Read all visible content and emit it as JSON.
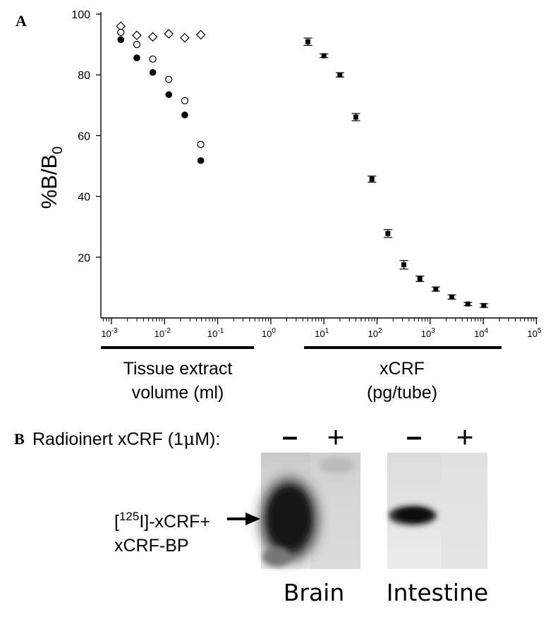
{
  "panel_a": {
    "letter": "A",
    "ylabel_main": "%B/B",
    "ylabel_sub": "0",
    "xticks": [
      {
        "base": "10",
        "exp": "-3"
      },
      {
        "base": "10",
        "exp": "-2"
      },
      {
        "base": "10",
        "exp": "-1"
      },
      {
        "base": "10",
        "exp": "0"
      },
      {
        "base": "10",
        "exp": "1"
      },
      {
        "base": "10",
        "exp": "2"
      },
      {
        "base": "10",
        "exp": "3"
      },
      {
        "base": "10",
        "exp": "4"
      },
      {
        "base": "10",
        "exp": "5"
      }
    ],
    "group_left": {
      "line1": "Tissue extract",
      "line2": "volume (ml)"
    },
    "group_right": {
      "line1": "xCRF",
      "line2": "(pg/tube)"
    }
  },
  "chart_data": {
    "type": "scatter",
    "log_x": true,
    "xlim": [
      0.0005,
      100000
    ],
    "ylim": [
      0,
      100
    ],
    "yticks": [
      20,
      40,
      60,
      80,
      100
    ],
    "grid": false,
    "legend": "none",
    "xlabel": "Tissue extract volume (ml) | xCRF (pg/tube)",
    "ylabel": "%B/B0",
    "series": [
      {
        "marker": "diamond-open",
        "x": [
          0.0015,
          0.003,
          0.006,
          0.012,
          0.024,
          0.048
        ],
        "y": [
          96,
          93,
          92.5,
          93.5,
          92.2,
          93.2
        ]
      },
      {
        "marker": "circle-open",
        "x": [
          0.0015,
          0.003,
          0.006,
          0.012,
          0.024,
          0.048
        ],
        "y": [
          94,
          90,
          85.2,
          78.5,
          71.5,
          57.1
        ]
      },
      {
        "marker": "circle-filled",
        "x": [
          0.0015,
          0.003,
          0.006,
          0.012,
          0.024,
          0.048
        ],
        "y": [
          91.6,
          85.6,
          80.8,
          73.5,
          66.8,
          51.8
        ]
      },
      {
        "marker": "square-filled",
        "error_bars": true,
        "x": [
          5,
          10,
          20,
          40,
          80,
          160,
          320,
          640,
          1280,
          2560,
          5120,
          10240
        ],
        "y": [
          90.9,
          86.3,
          80.0,
          66.1,
          45.7,
          27.8,
          17.5,
          12.9,
          9.5,
          6.9,
          4.6,
          4.1
        ],
        "err": [
          1.2,
          0.6,
          0.7,
          1.2,
          1.0,
          1.3,
          1.4,
          0.9,
          0.7,
          0.7,
          0.5,
          0.6
        ]
      }
    ]
  },
  "panel_b": {
    "letter": "B",
    "radioinert_label": "Radioinert xCRF (1",
    "radioinert_mu": "μ",
    "radioinert_suffix": "M):",
    "minus": "–",
    "plus": "+",
    "complex_prefix": "[",
    "complex_iso": "125",
    "complex_iso_rest": "I]-xCRF+",
    "complex_line2": "xCRF-BP",
    "brain_label": "Brain",
    "intestine_label": "Intestine"
  }
}
